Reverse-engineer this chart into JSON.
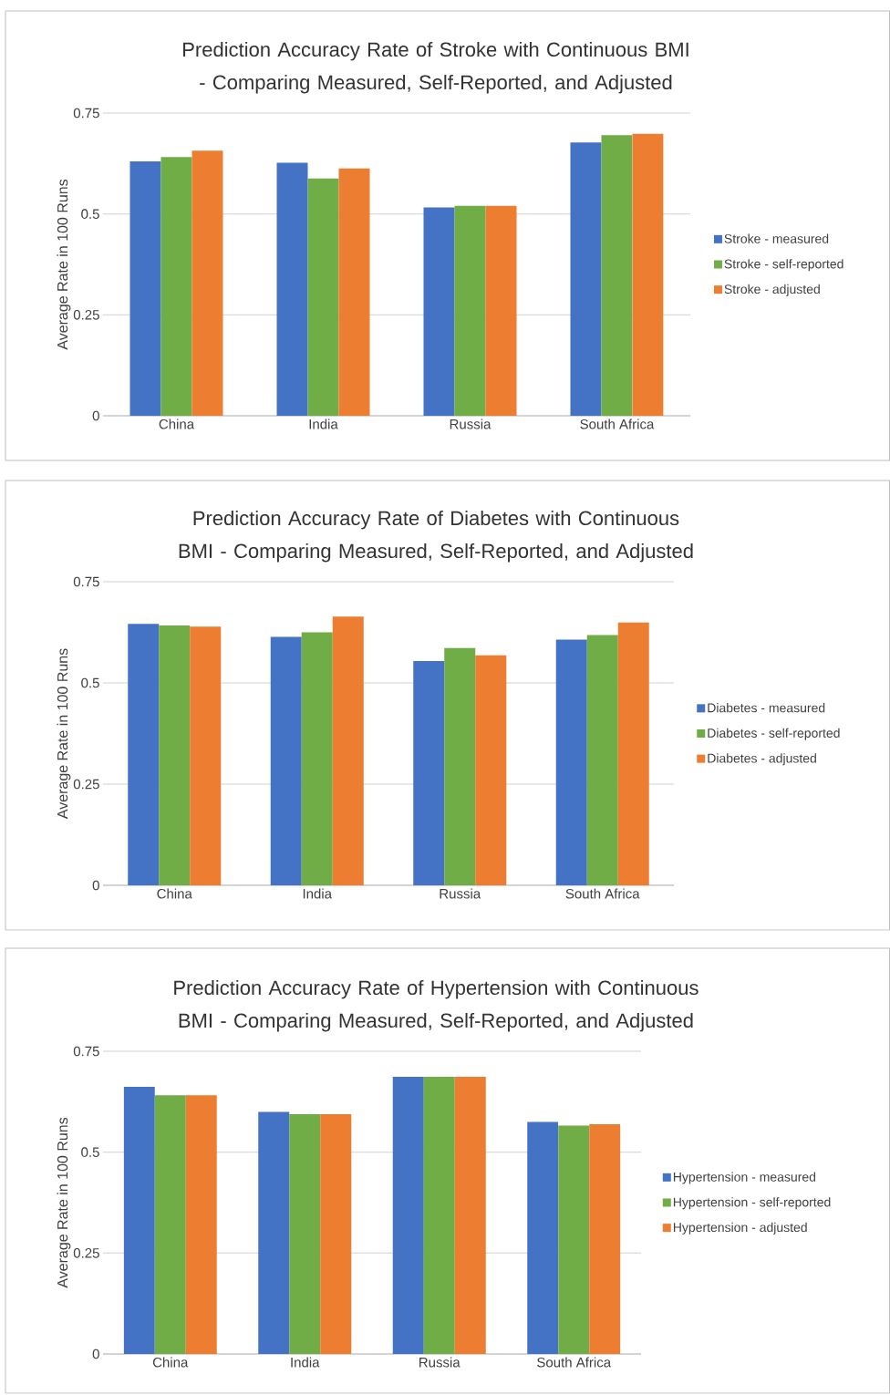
{
  "chart_data": [
    {
      "type": "bar",
      "title": "Prediction Accuracy Rate of Stroke with Continuous BMI - Comparing Measured, Self-Reported, and Adjusted",
      "ylabel": "Average Rate in 100 Runs",
      "categories": [
        "China",
        "India",
        "Russia",
        "South Africa"
      ],
      "ylim": [
        0,
        0.75
      ],
      "yticks": [
        0,
        0.25,
        0.5,
        0.75
      ],
      "grid": "y",
      "legend": "right",
      "series": [
        {
          "name": "Stroke - measured",
          "color": "#4472c4",
          "values": [
            0.63,
            0.627,
            0.516,
            0.677
          ]
        },
        {
          "name": "Stroke - self-reported",
          "color": "#70ad47",
          "values": [
            0.641,
            0.588,
            0.52,
            0.695
          ]
        },
        {
          "name": "Stroke - adjusted",
          "color": "#ed7d31",
          "values": [
            0.657,
            0.613,
            0.52,
            0.699
          ]
        }
      ]
    },
    {
      "type": "bar",
      "title": "Prediction Accuracy Rate of Diabetes with Continuous BMI - Comparing Measured, Self-Reported, and Adjusted",
      "ylabel": "Average Rate in 100 Runs",
      "categories": [
        "China",
        "India",
        "Russia",
        "South Africa"
      ],
      "ylim": [
        0,
        0.75
      ],
      "yticks": [
        0,
        0.25,
        0.5,
        0.75
      ],
      "grid": "y",
      "legend": "right",
      "series": [
        {
          "name": "Diabetes - measured",
          "color": "#4472c4",
          "values": [
            0.646,
            0.614,
            0.554,
            0.607
          ]
        },
        {
          "name": "Diabetes - self-reported",
          "color": "#70ad47",
          "values": [
            0.642,
            0.625,
            0.586,
            0.618
          ]
        },
        {
          "name": "Diabetes - adjusted",
          "color": "#ed7d31",
          "values": [
            0.639,
            0.664,
            0.568,
            0.649
          ]
        }
      ]
    },
    {
      "type": "bar",
      "title": "Prediction Accuracy Rate of Hypertension with Continuous BMI - Comparing Measured, Self-Reported, and Adjusted",
      "ylabel": "Average Rate in 100 Runs",
      "categories": [
        "China",
        "India",
        "Russia",
        "South Africa"
      ],
      "ylim": [
        0,
        0.75
      ],
      "yticks": [
        0,
        0.25,
        0.5,
        0.75
      ],
      "grid": "y",
      "legend": "right",
      "series": [
        {
          "name": "Hypertension - measured",
          "color": "#4472c4",
          "values": [
            0.662,
            0.6,
            0.687,
            0.575
          ]
        },
        {
          "name": "Hypertension - self-reported",
          "color": "#70ad47",
          "values": [
            0.641,
            0.594,
            0.687,
            0.566
          ]
        },
        {
          "name": "Hypertension - adjusted",
          "color": "#ed7d31",
          "values": [
            0.641,
            0.594,
            0.687,
            0.569
          ]
        }
      ]
    }
  ]
}
